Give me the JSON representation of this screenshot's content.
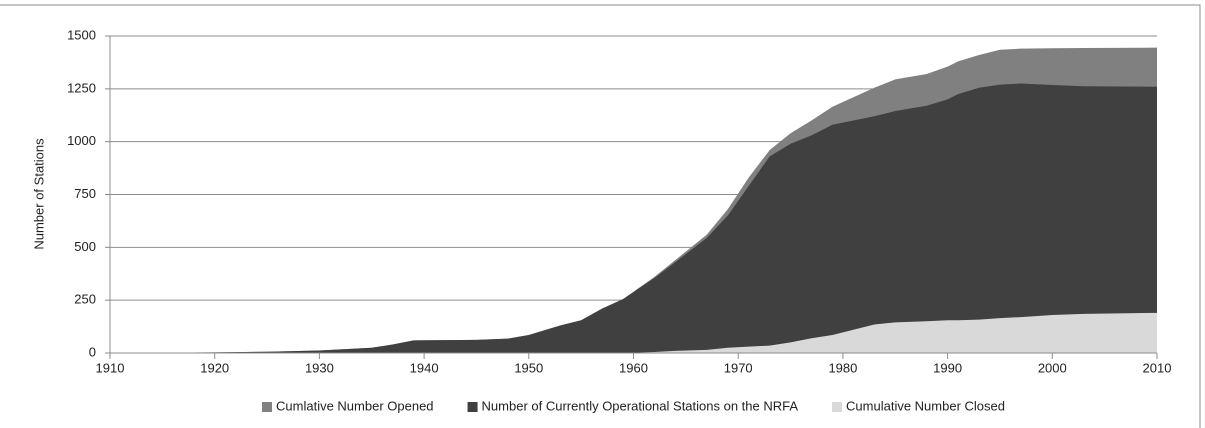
{
  "chart_data": {
    "type": "area",
    "ylabel": "Number of Stations",
    "x": [
      1910,
      1920,
      1925,
      1930,
      1935,
      1937,
      1939,
      1945,
      1948,
      1950,
      1953,
      1955,
      1957,
      1959,
      1962,
      1964,
      1967,
      1969,
      1971,
      1973,
      1975,
      1977,
      1979,
      1981,
      1983,
      1985,
      1988,
      1990,
      1991,
      1993,
      1995,
      1997,
      2000,
      2003,
      2010
    ],
    "series": [
      {
        "name": "Cumlative Number Opened",
        "color": "#808080",
        "values": [
          0,
          3,
          6,
          12,
          25,
          40,
          60,
          62,
          68,
          85,
          130,
          155,
          210,
          255,
          360,
          440,
          560,
          680,
          830,
          960,
          1040,
          1100,
          1165,
          1210,
          1255,
          1295,
          1320,
          1355,
          1380,
          1410,
          1435,
          1440,
          1442,
          1443,
          1445
        ]
      },
      {
        "name": "Number of Currently Operational Stations on the NRFA",
        "color": "#404040",
        "values": [
          0,
          3,
          6,
          12,
          25,
          40,
          60,
          62,
          68,
          85,
          130,
          155,
          210,
          255,
          355,
          430,
          545,
          650,
          790,
          930,
          990,
          1030,
          1080,
          1100,
          1120,
          1145,
          1170,
          1200,
          1225,
          1255,
          1270,
          1275,
          1268,
          1262,
          1260
        ]
      },
      {
        "name": "Cumulative Number Closed",
        "color": "#d9d9d9",
        "values": [
          0,
          0,
          0,
          0,
          0,
          0,
          0,
          0,
          0,
          0,
          0,
          0,
          0,
          0,
          5,
          10,
          15,
          25,
          30,
          35,
          50,
          70,
          85,
          110,
          135,
          145,
          150,
          155,
          155,
          158,
          165,
          170,
          180,
          185,
          190
        ]
      }
    ],
    "xlim": [
      1910,
      2010
    ],
    "xticks": [
      1910,
      1920,
      1930,
      1940,
      1950,
      1960,
      1970,
      1980,
      1990,
      2000,
      2010
    ],
    "ylim": [
      0,
      1500
    ],
    "yticks": [
      0,
      250,
      500,
      750,
      1000,
      1250,
      1500
    ],
    "grid": true,
    "legend": "bottom"
  }
}
